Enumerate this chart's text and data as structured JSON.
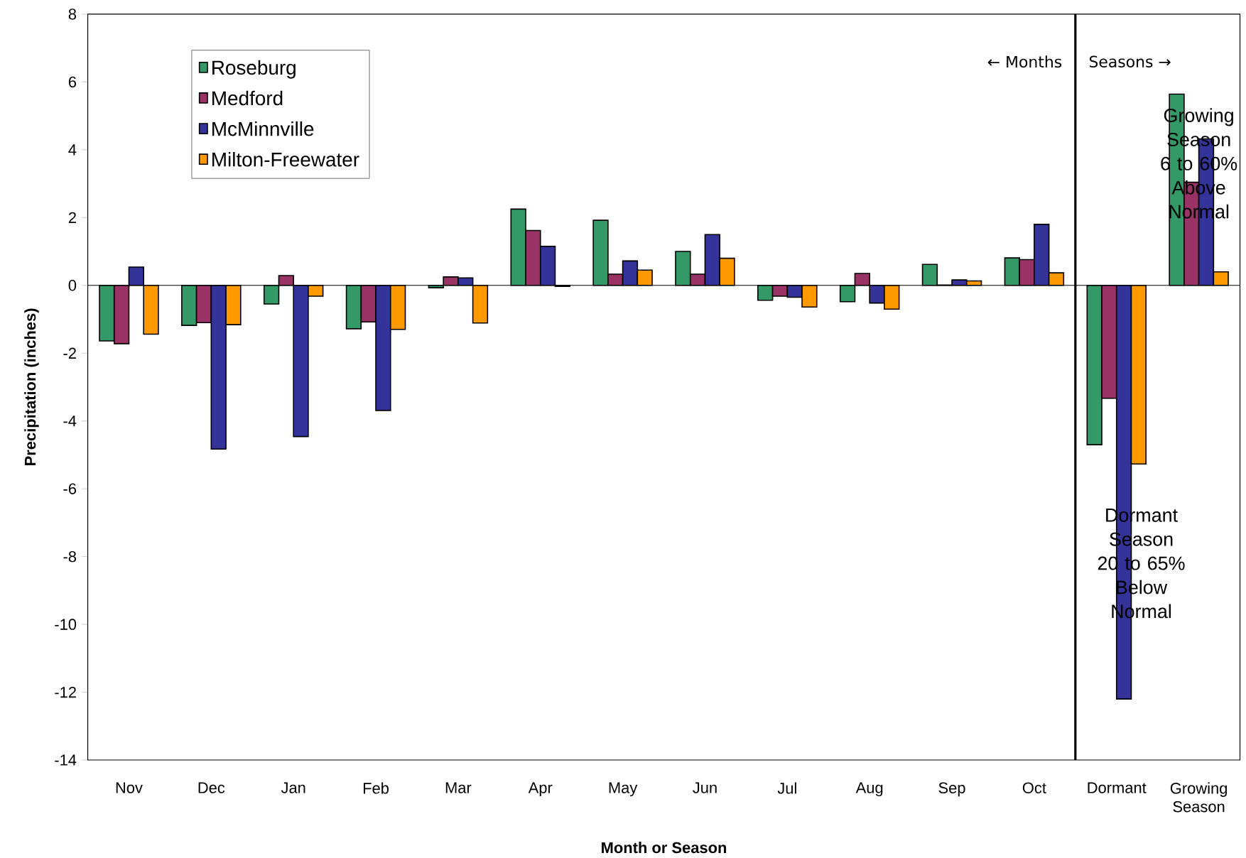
{
  "chart_data": {
    "type": "bar",
    "xlabel": "Month or Season",
    "ylabel": "Precipitation (inches)",
    "categories": [
      "Nov",
      "Dec",
      "Jan",
      "Feb",
      "Mar",
      "Apr",
      "May",
      "Jun",
      "Jul",
      "Aug",
      "Sep",
      "Oct",
      "Dormant",
      "Growing Season"
    ],
    "series": [
      {
        "name": "Roseburg",
        "color": "#339966",
        "values": [
          -1.64,
          -1.18,
          -0.55,
          -1.28,
          -0.07,
          2.25,
          1.92,
          1.0,
          -0.44,
          -0.48,
          0.62,
          0.81,
          -4.7,
          5.64
        ]
      },
      {
        "name": "Medford",
        "color": "#993366",
        "values": [
          -1.72,
          -1.1,
          0.29,
          -1.08,
          0.25,
          1.62,
          0.33,
          0.33,
          -0.32,
          0.35,
          0.01,
          0.76,
          -3.33,
          3.04
        ]
      },
      {
        "name": "McMinnville",
        "color": "#333399",
        "values": [
          0.54,
          -4.83,
          -4.46,
          -3.69,
          0.22,
          1.15,
          0.72,
          1.5,
          -0.35,
          -0.52,
          0.16,
          1.8,
          -12.2,
          4.32
        ]
      },
      {
        "name": "Milton-Freewater",
        "color": "#ff9900",
        "values": [
          -1.44,
          -1.16,
          -0.32,
          -1.3,
          -1.11,
          -0.03,
          0.45,
          0.8,
          -0.64,
          -0.7,
          0.13,
          0.37,
          -5.27,
          0.4
        ]
      }
    ],
    "ylim": [
      -14,
      8
    ],
    "yticks": [
      -14,
      -12,
      -10,
      -8,
      -6,
      -4,
      -2,
      0,
      2,
      4,
      6,
      8
    ],
    "legend": "top left",
    "annotations": [
      "←  Months",
      "Seasons  →",
      "Growing Season 6 to 60% Above Normal",
      "Dormant Season 20 to 65% Below Normal"
    ]
  }
}
